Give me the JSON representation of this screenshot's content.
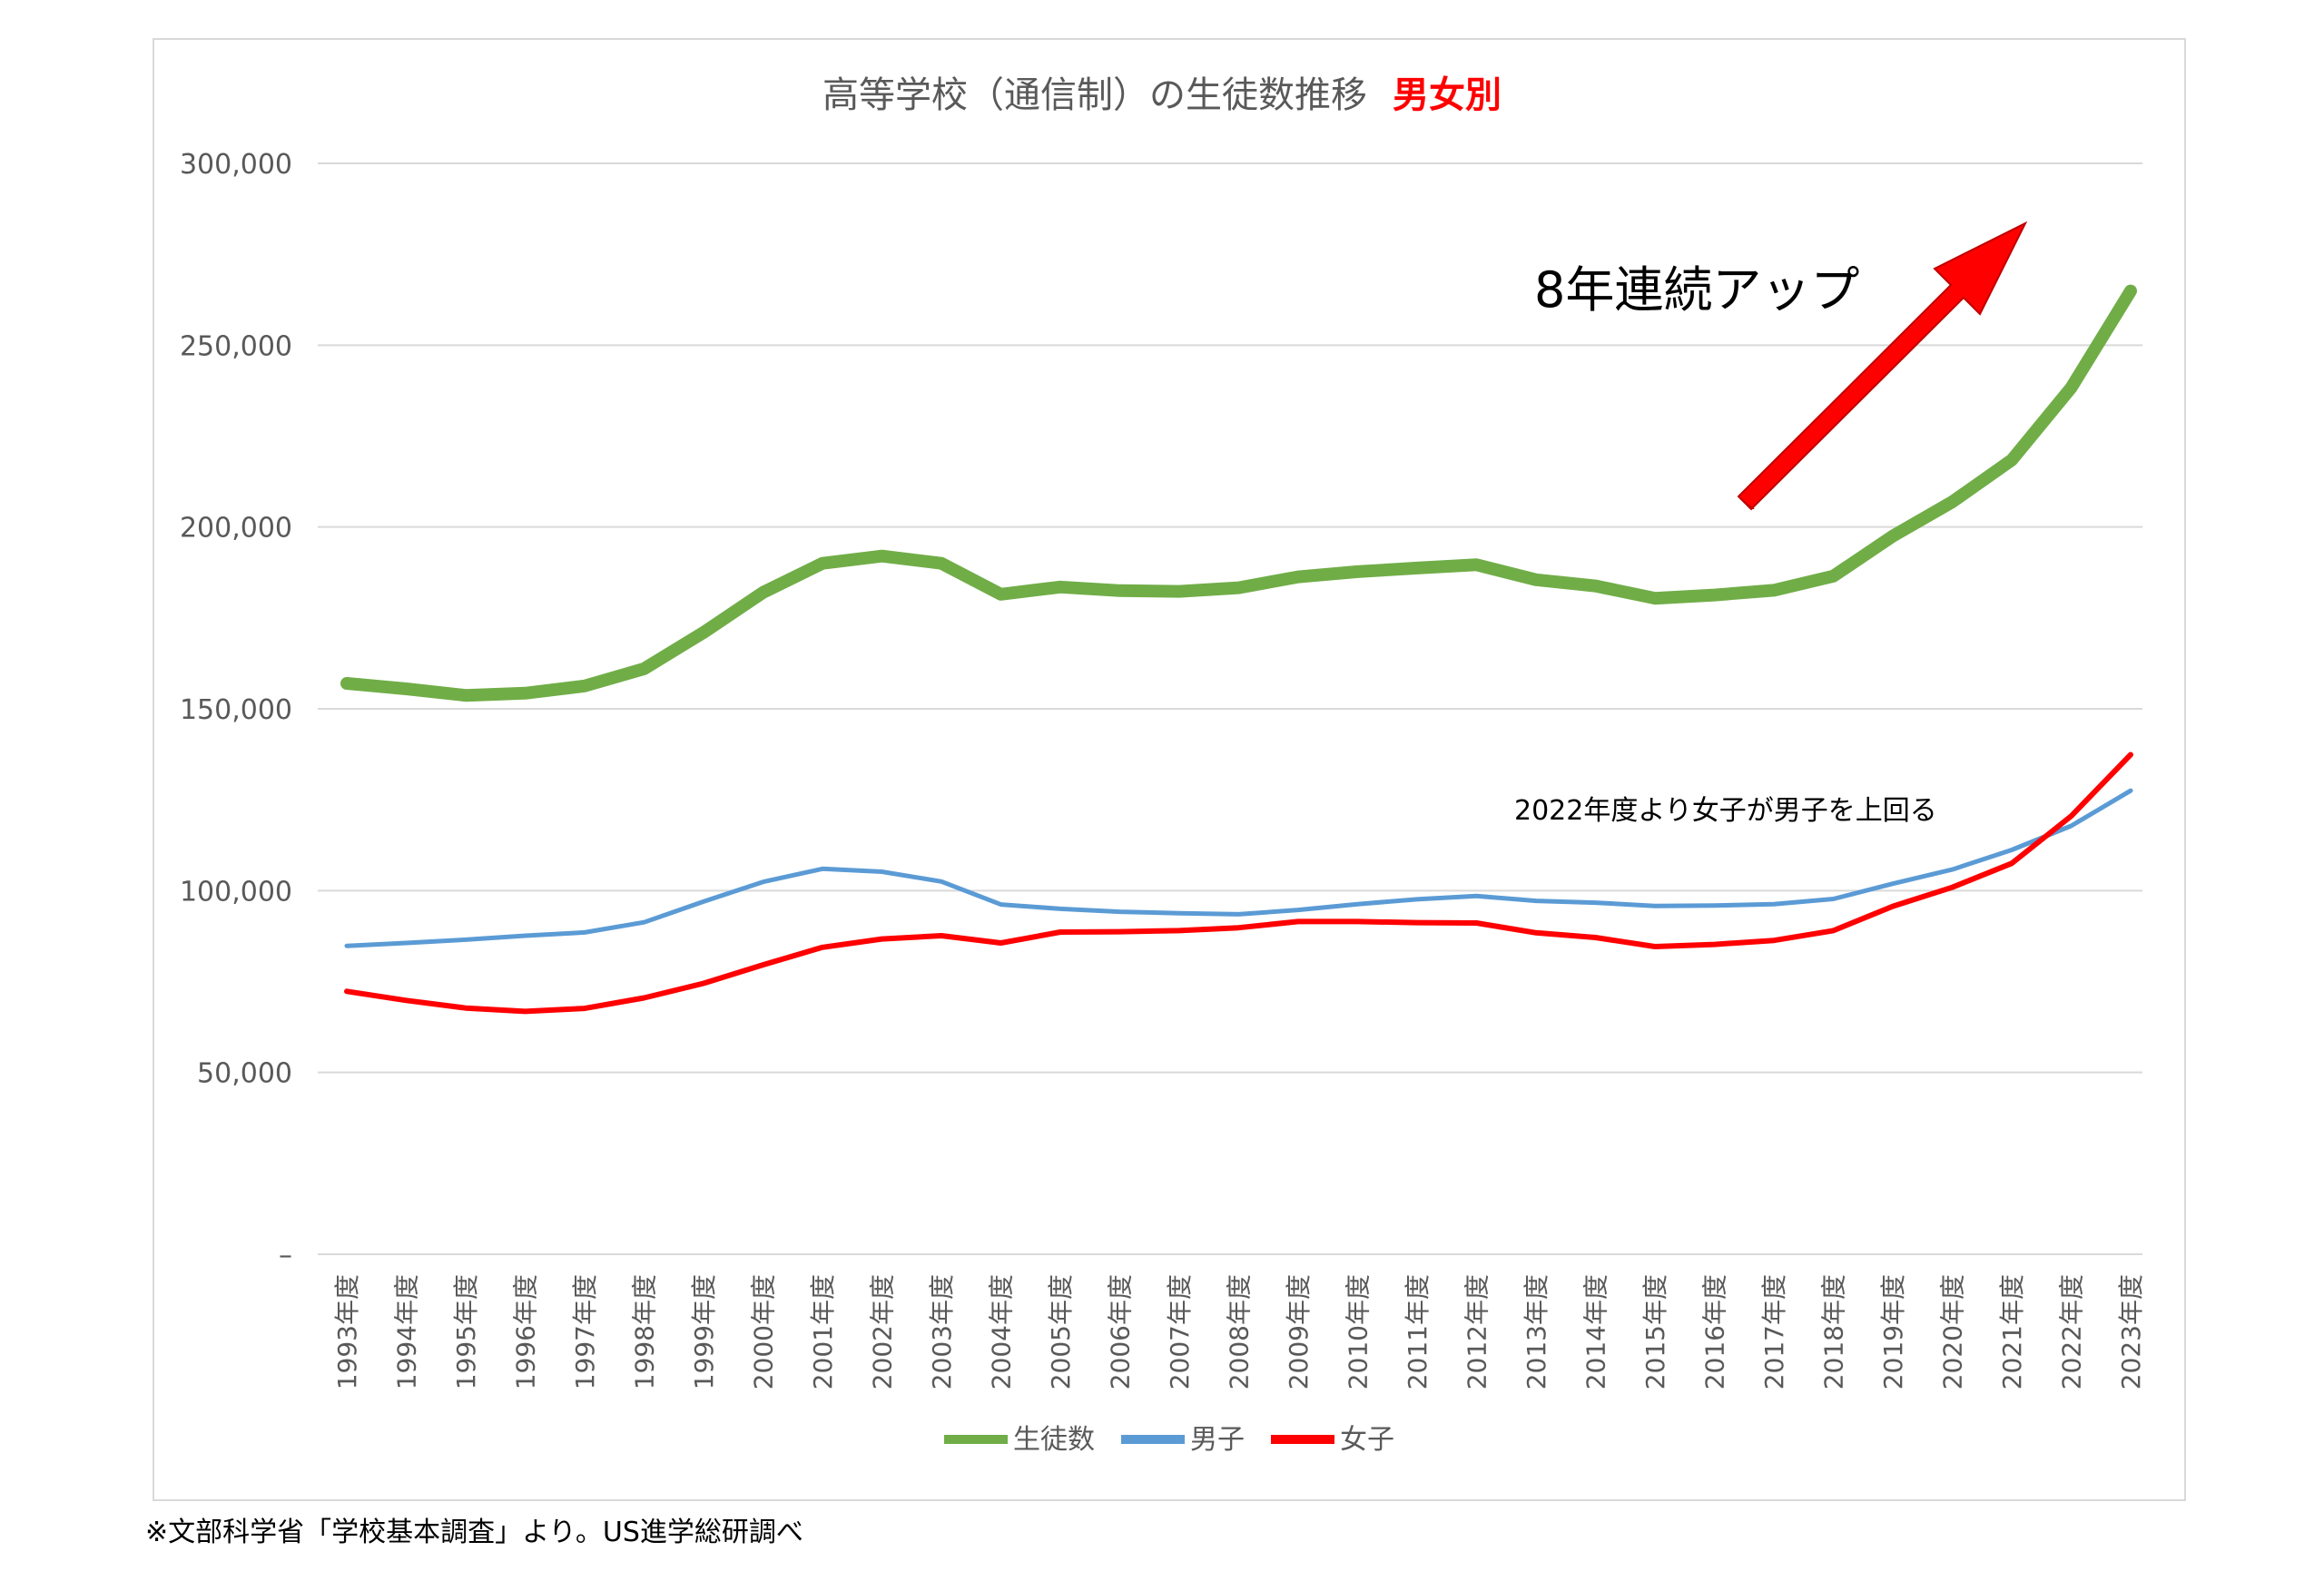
{
  "chart_data": {
    "type": "line",
    "title": "高等学校（通信制）の生徒数推移",
    "title_highlight": "男女別",
    "categories": [
      "1993年度",
      "1994年度",
      "1995年度",
      "1996年度",
      "1997年度",
      "1998年度",
      "1999年度",
      "2000年度",
      "2001年度",
      "2002年度",
      "2003年度",
      "2004年度",
      "2005年度",
      "2006年度",
      "2007年度",
      "2008年度",
      "2009年度",
      "2010年度",
      "2011年度",
      "2012年度",
      "2013年度",
      "2014年度",
      "2015年度",
      "2016年度",
      "2017年度",
      "2018年度",
      "2019年度",
      "2020年度",
      "2021年度",
      "2022年度",
      "2023年度"
    ],
    "y_ticks": [
      "–",
      "50,000",
      "100,000",
      "150,000",
      "200,000",
      "250,000",
      "300,000"
    ],
    "ylim": [
      0,
      300000
    ],
    "grid": true,
    "legend_position": "bottom",
    "series": [
      {
        "name": "生徒数",
        "color": "#70ad47",
        "values": [
          157000,
          155500,
          153700,
          154300,
          156300,
          161000,
          171000,
          182000,
          190000,
          192000,
          190000,
          181500,
          183500,
          182500,
          182300,
          183300,
          186300,
          187700,
          188700,
          189600,
          185500,
          183800,
          180400,
          181300,
          182600,
          186500,
          197500,
          206900,
          218400,
          238300,
          264900
        ]
      },
      {
        "name": "男子",
        "color": "#5b9bd5",
        "values": [
          84800,
          85600,
          86500,
          87600,
          88500,
          91300,
          97000,
          102400,
          106000,
          105200,
          102500,
          96200,
          95000,
          94200,
          93800,
          93500,
          94700,
          96300,
          97600,
          98500,
          97200,
          96700,
          95800,
          95900,
          96300,
          97700,
          101900,
          105800,
          111200,
          117800,
          127500
        ]
      },
      {
        "name": "女子",
        "color": "#ff0000",
        "values": [
          72300,
          69800,
          67700,
          66800,
          67600,
          70500,
          74500,
          79600,
          84400,
          86700,
          87600,
          85600,
          88600,
          88700,
          89000,
          89800,
          91500,
          91500,
          91200,
          91100,
          88400,
          87100,
          84600,
          85200,
          86300,
          89000,
          95700,
          100900,
          107500,
          120500,
          137400
        ]
      }
    ],
    "annotations": {
      "arrow_text": "8年連続アップ",
      "cross_note": "2022年度より女子が男子を上回る"
    }
  },
  "source_note": "※文部科学省「学校基本調査」より。US進学総研調べ"
}
